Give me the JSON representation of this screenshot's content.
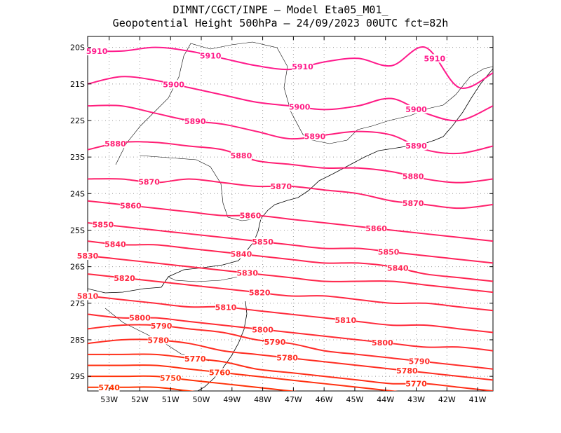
{
  "header": {
    "line1": "DIMNT/CGCT/INPE —  Model Eta05_M01_",
    "line2": "Geopotential Height 500hPa —  24/09/2023 00UTC fct=82h"
  },
  "map": {
    "lon_range": [
      -53.7,
      -40.5
    ],
    "lat_range": [
      -29.4,
      -19.7
    ],
    "lon_ticks": [
      "53W",
      "52W",
      "51W",
      "50W",
      "49W",
      "48W",
      "47W",
      "46W",
      "45W",
      "44W",
      "43W",
      "42W",
      "41W"
    ],
    "lat_ticks": [
      "20S",
      "21S",
      "22S",
      "23S",
      "24S",
      "25S",
      "26S",
      "27S",
      "28S",
      "29S"
    ],
    "grid": "dotted",
    "contour_interval": 10,
    "contour_colors": {
      "high": "#ff1a8c",
      "low": "#ff3300"
    }
  },
  "chart_data": {
    "type": "contour",
    "variable": "Geopotential Height 500hPa",
    "contours": [
      {
        "value": 5910,
        "label": "5910",
        "lat_at_lons": [
          -20.1,
          -20.1,
          -20.0,
          -20.1,
          -20.3,
          -20.5,
          -20.6,
          -20.4,
          -20.3,
          -20.5,
          -20.0,
          -21.1,
          -20.7
        ],
        "label_lons": [
          -53.4,
          -49.7,
          -46.7,
          -42.4
        ]
      },
      {
        "value": 5900,
        "label": "5900",
        "lat_at_lons": [
          -21.0,
          -20.8,
          -20.9,
          -21.1,
          -21.3,
          -21.5,
          -21.6,
          -21.7,
          -21.6,
          -21.4,
          -21.8,
          -22.0,
          -21.6
        ],
        "label_lons": [
          -50.9,
          -46.8,
          -43.0
        ]
      },
      {
        "value": 5890,
        "label": "5890",
        "lat_at_lons": [
          -21.6,
          -21.6,
          -21.8,
          -22.0,
          -22.1,
          -22.3,
          -22.5,
          -22.4,
          -22.3,
          -22.4,
          -22.8,
          -22.9,
          -22.7
        ],
        "label_lons": [
          -50.2,
          -46.3,
          -43.0
        ]
      },
      {
        "value": 5880,
        "label": "5880",
        "lat_at_lons": [
          -22.8,
          -22.6,
          -22.6,
          -22.7,
          -22.8,
          -23.1,
          -23.2,
          -23.3,
          -23.3,
          -23.4,
          -23.6,
          -23.7,
          -23.6
        ],
        "label_lons": [
          -52.8,
          -48.7,
          -43.1
        ]
      },
      {
        "value": 5870,
        "label": "5870",
        "lat_at_lons": [
          -23.6,
          -23.6,
          -23.7,
          -23.6,
          -23.7,
          -23.8,
          -23.8,
          -23.9,
          -24.0,
          -24.2,
          -24.3,
          -24.4,
          -24.3
        ],
        "label_lons": [
          -51.7,
          -47.4,
          -43.1
        ]
      },
      {
        "value": 5860,
        "label": "5860",
        "lat_at_lons": [
          -24.2,
          -24.3,
          -24.4,
          -24.5,
          -24.6,
          -24.6,
          -24.7,
          -24.8,
          -24.9,
          -25.0,
          -25.1,
          -25.2,
          -25.3
        ],
        "label_lons": [
          -52.3,
          -48.4,
          -44.3
        ]
      },
      {
        "value": 5850,
        "label": "5850",
        "lat_at_lons": [
          -24.8,
          -24.9,
          -25.0,
          -25.1,
          -25.2,
          -25.3,
          -25.4,
          -25.5,
          -25.5,
          -25.6,
          -25.7,
          -25.8,
          -25.9
        ],
        "label_lons": [
          -53.2,
          -48.0,
          -43.9
        ]
      },
      {
        "value": 5840,
        "label": "5840",
        "lat_at_lons": [
          -25.3,
          -25.4,
          -25.4,
          -25.5,
          -25.6,
          -25.7,
          -25.8,
          -25.9,
          -25.9,
          -26.0,
          -26.2,
          -26.3,
          -26.4
        ],
        "label_lons": [
          -52.8,
          -48.7,
          -43.6
        ]
      },
      {
        "value": 5830,
        "label": "5830",
        "lat_at_lons": [
          -25.7,
          -25.8,
          -25.9,
          -26.0,
          -26.1,
          -26.2,
          -26.3,
          -26.4,
          -26.4,
          -26.4,
          -26.5,
          -26.6,
          -26.7
        ],
        "label_lons": [
          -53.7,
          -48.5
        ]
      },
      {
        "value": 5820,
        "label": "5820",
        "lat_at_lons": [
          -26.2,
          -26.3,
          -26.4,
          -26.5,
          -26.6,
          -26.7,
          -26.8,
          -26.8,
          -26.9,
          -27.0,
          -27.0,
          -27.1,
          -27.2
        ],
        "label_lons": [
          -52.5,
          -48.1
        ]
      },
      {
        "value": 5810,
        "label": "5810",
        "lat_at_lons": [
          -26.8,
          -26.9,
          -27.0,
          -27.1,
          -27.1,
          -27.2,
          -27.3,
          -27.4,
          -27.5,
          -27.6,
          -27.6,
          -27.7,
          -27.8
        ],
        "label_lons": [
          -53.7,
          -49.2,
          -45.3
        ]
      },
      {
        "value": 5800,
        "label": "5800",
        "lat_at_lons": [
          -27.3,
          -27.4,
          -27.4,
          -27.5,
          -27.6,
          -27.7,
          -27.8,
          -27.9,
          -28.0,
          -28.1,
          -28.2,
          -28.2,
          -28.3
        ],
        "label_lons": [
          -52.0,
          -48.0,
          -44.1
        ]
      },
      {
        "value": 5790,
        "label": "5790",
        "lat_at_lons": [
          -27.7,
          -27.6,
          -27.6,
          -27.7,
          -27.8,
          -28.0,
          -28.1,
          -28.3,
          -28.4,
          -28.5,
          -28.6,
          -28.7,
          -28.8
        ],
        "label_lons": [
          -51.3,
          -47.6,
          -42.9
        ]
      },
      {
        "value": 5780,
        "label": "5780",
        "lat_at_lons": [
          -28.1,
          -28.0,
          -28.0,
          -28.1,
          -28.3,
          -28.4,
          -28.5,
          -28.6,
          -28.7,
          -28.8,
          -28.9,
          -29.0,
          -29.1
        ],
        "label_lons": [
          -51.4,
          -47.2,
          -43.3
        ]
      },
      {
        "value": 5770,
        "label": "5770",
        "lat_at_lons": [
          -28.4,
          -28.4,
          -28.4,
          -28.5,
          -28.6,
          -28.8,
          -28.9,
          -29.0,
          -29.1,
          -29.2,
          -29.2,
          -29.3,
          -29.4
        ],
        "label_lons": [
          -50.2,
          -43.0
        ]
      },
      {
        "value": 5760,
        "label": "5760",
        "lat_at_lons": [
          -28.7,
          -28.7,
          -28.7,
          -28.8,
          -28.9,
          -29.0,
          -29.1,
          -29.2,
          -29.3,
          -29.4,
          -29.5,
          -29.6,
          -29.7
        ],
        "label_lons": [
          -49.4
        ]
      },
      {
        "value": 5750,
        "label": "5750",
        "lat_at_lons": [
          -29.0,
          -29.0,
          -29.0,
          -29.1,
          -29.2,
          -29.3,
          -29.4,
          -29.5,
          -29.6,
          -29.7,
          -29.8,
          -29.9,
          -30.0
        ],
        "label_lons": [
          -51.0
        ]
      },
      {
        "value": 5740,
        "label": "5740",
        "lat_at_lons": [
          -29.3,
          -29.3,
          -29.3,
          -29.4,
          -29.5,
          -29.6,
          -29.7,
          -29.8,
          -29.9,
          -30.0,
          -30.1,
          -30.2,
          -30.3
        ],
        "label_lons": [
          -53.0
        ]
      }
    ]
  }
}
